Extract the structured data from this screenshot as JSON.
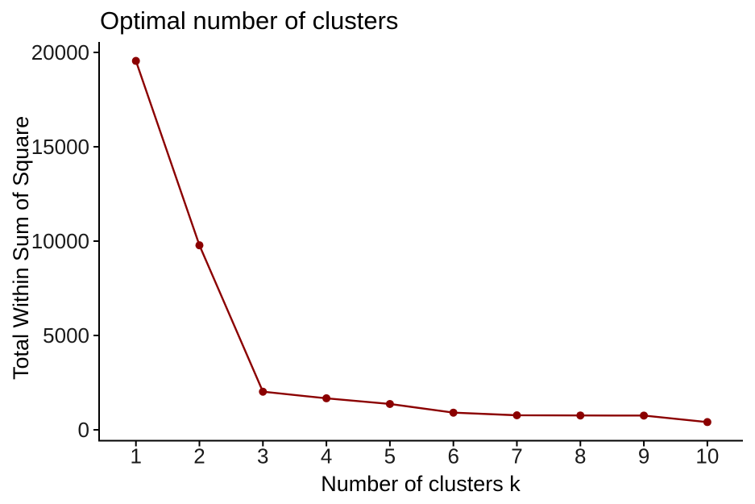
{
  "chart_data": {
    "type": "line",
    "title": "Optimal number of clusters",
    "xlabel": "Number of clusters k",
    "ylabel": "Total Within Sum of Square",
    "series": [
      {
        "name": "total-within-sum-of-square",
        "x": [
          1,
          2,
          3,
          4,
          5,
          6,
          7,
          8,
          9,
          10
        ],
        "y": [
          19550,
          9780,
          2020,
          1670,
          1370,
          910,
          770,
          760,
          755,
          410
        ]
      }
    ],
    "x_ticks": [
      1,
      2,
      3,
      4,
      5,
      6,
      7,
      8,
      9,
      10
    ],
    "y_ticks": [
      0,
      5000,
      10000,
      15000,
      20000
    ],
    "xlim": [
      0.42,
      10.56
    ],
    "ylim": [
      -577,
      20556
    ],
    "grid": false,
    "legend": "none",
    "marker": "circle",
    "line_color": "#8B0000",
    "point_color": "#8B0000",
    "axis_color": "#000000",
    "tick_label_color": "#1a1a1a",
    "background_color": "#ffffff"
  }
}
